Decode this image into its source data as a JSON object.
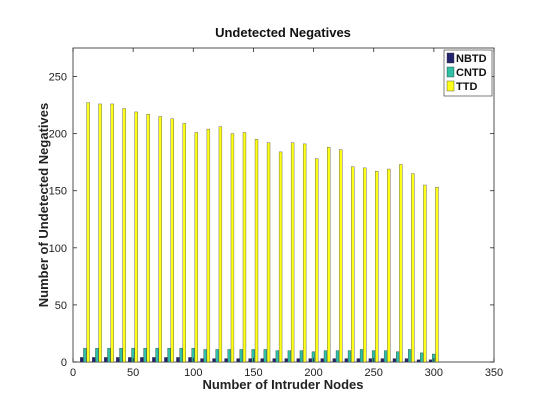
{
  "chart_data": {
    "type": "bar",
    "title": "Undetected Negatives",
    "xlabel": "Number of Intruder Nodes",
    "ylabel": "Number of Undetected Negatives",
    "xlim": [
      0,
      350
    ],
    "ylim": [
      0,
      275
    ],
    "x_ticks": [
      0,
      50,
      100,
      150,
      200,
      250,
      300,
      350
    ],
    "y_ticks": [
      0,
      50,
      100,
      150,
      200,
      250
    ],
    "grid": false,
    "legend_position": "top-right",
    "x": [
      10,
      20,
      30,
      40,
      50,
      60,
      70,
      80,
      90,
      100,
      110,
      120,
      130,
      140,
      150,
      160,
      170,
      180,
      190,
      200,
      210,
      220,
      230,
      240,
      250,
      260,
      270,
      280,
      290,
      300
    ],
    "series": [
      {
        "name": "NBTD",
        "color": "#24246e",
        "values": [
          4,
          4,
          4,
          4,
          4,
          4,
          4,
          4,
          4,
          4,
          3,
          3,
          3,
          3,
          3,
          3,
          3,
          3,
          3,
          3,
          3,
          3,
          3,
          3,
          3,
          3,
          3,
          3,
          2,
          2
        ]
      },
      {
        "name": "CNTD",
        "color": "#2ebfa5",
        "values": [
          12,
          12,
          12,
          12,
          12,
          12,
          12,
          12,
          12,
          12,
          11,
          11,
          11,
          11,
          11,
          11,
          10,
          10,
          10,
          9,
          10,
          10,
          10,
          11,
          10,
          10,
          9,
          11,
          8,
          7
        ]
      },
      {
        "name": "TTD",
        "color": "#ffff1a",
        "values": [
          227,
          226,
          226,
          222,
          219,
          217,
          215,
          213,
          209,
          201,
          204,
          206,
          200,
          201,
          195,
          192,
          184,
          192,
          191,
          178,
          188,
          186,
          171,
          170,
          167,
          169,
          173,
          165,
          155,
          153
        ]
      }
    ]
  }
}
